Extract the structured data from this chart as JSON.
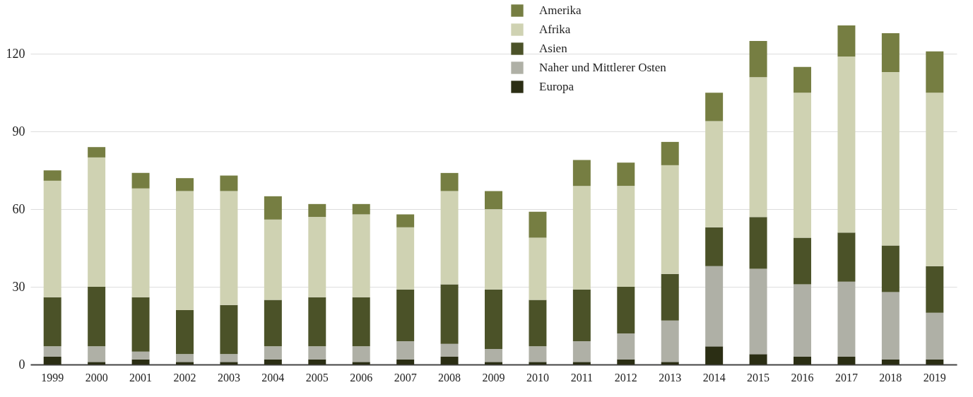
{
  "chart_data": {
    "type": "bar",
    "stacked": true,
    "categories": [
      "1999",
      "2000",
      "2001",
      "2002",
      "2003",
      "2004",
      "2005",
      "2006",
      "2007",
      "2008",
      "2009",
      "2010",
      "2011",
      "2012",
      "2013",
      "2014",
      "2015",
      "2016",
      "2017",
      "2018",
      "2019"
    ],
    "series": [
      {
        "name": "Europa",
        "color": "#2b2e14",
        "values": [
          3,
          1,
          2,
          1,
          1,
          2,
          2,
          1,
          2,
          3,
          1,
          1,
          1,
          2,
          1,
          7,
          4,
          3,
          3,
          2,
          2
        ]
      },
      {
        "name": "Naher und Mittlerer Osten",
        "color": "#afb0a6",
        "values": [
          4,
          6,
          3,
          3,
          3,
          5,
          5,
          6,
          7,
          5,
          5,
          6,
          8,
          10,
          16,
          31,
          33,
          28,
          29,
          26,
          18
        ]
      },
      {
        "name": "Asien",
        "color": "#4b5228",
        "values": [
          19,
          23,
          21,
          17,
          19,
          18,
          19,
          19,
          20,
          23,
          23,
          18,
          20,
          18,
          18,
          15,
          20,
          18,
          19,
          18,
          18
        ]
      },
      {
        "name": "Afrika",
        "color": "#cfd2b2",
        "values": [
          45,
          50,
          42,
          46,
          44,
          31,
          31,
          32,
          24,
          36,
          31,
          24,
          40,
          39,
          42,
          41,
          54,
          56,
          68,
          67,
          67
        ]
      },
      {
        "name": "Amerika",
        "color": "#767e42",
        "values": [
          4,
          4,
          6,
          5,
          6,
          9,
          5,
          4,
          5,
          7,
          7,
          10,
          10,
          9,
          9,
          11,
          14,
          10,
          12,
          15,
          16
        ]
      }
    ],
    "ylim": [
      0,
      131
    ],
    "yticks": [
      0,
      30,
      60,
      90,
      120
    ],
    "grid": "y",
    "legend": "top"
  }
}
